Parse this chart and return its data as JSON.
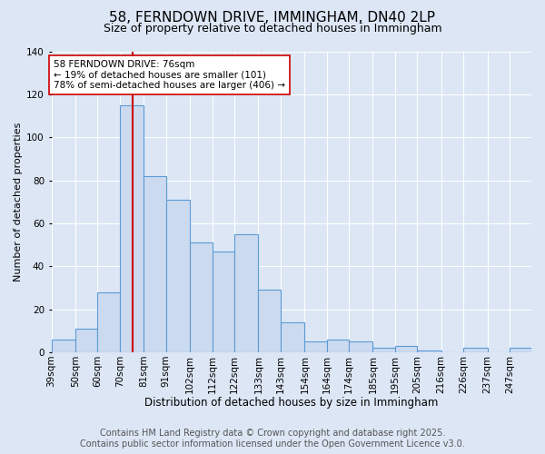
{
  "title": "58, FERNDOWN DRIVE, IMMINGHAM, DN40 2LP",
  "subtitle": "Size of property relative to detached houses in Immingham",
  "xlabel": "Distribution of detached houses by size in Immingham",
  "ylabel": "Number of detached properties",
  "footer_line1": "Contains HM Land Registry data © Crown copyright and database right 2025.",
  "footer_line2": "Contains public sector information licensed under the Open Government Licence v3.0.",
  "bin_labels": [
    "39sqm",
    "50sqm",
    "60sqm",
    "70sqm",
    "81sqm",
    "91sqm",
    "102sqm",
    "112sqm",
    "122sqm",
    "133sqm",
    "143sqm",
    "154sqm",
    "164sqm",
    "174sqm",
    "185sqm",
    "195sqm",
    "205sqm",
    "216sqm",
    "226sqm",
    "237sqm",
    "247sqm"
  ],
  "bin_edges": [
    39,
    50,
    60,
    70,
    81,
    91,
    102,
    112,
    122,
    133,
    143,
    154,
    164,
    174,
    185,
    195,
    205,
    216,
    226,
    237,
    247
  ],
  "bar_values": [
    6,
    11,
    28,
    115,
    82,
    71,
    51,
    47,
    55,
    29,
    14,
    5,
    6,
    5,
    2,
    3,
    1,
    0,
    2,
    0,
    2
  ],
  "bar_facecolor": "#ccdaf0",
  "bar_edgecolor": "#5b9bd5",
  "reference_line_x": 76,
  "reference_line_color": "#cc0000",
  "annotation_line1": "58 FERNDOWN DRIVE: 76sqm",
  "annotation_line2": "← 19% of detached houses are smaller (101)",
  "annotation_line3": "78% of semi-detached houses are larger (406) →",
  "annotation_box_edgecolor": "#cc0000",
  "annotation_box_facecolor": "#ffffff",
  "ylim": [
    0,
    140
  ],
  "background_color": "#dce6f5",
  "plot_background": "#dce6f5",
  "grid_color": "#ffffff",
  "title_fontsize": 11,
  "subtitle_fontsize": 9,
  "xlabel_fontsize": 8.5,
  "ylabel_fontsize": 8,
  "tick_fontsize": 7.5,
  "footer_fontsize": 7
}
